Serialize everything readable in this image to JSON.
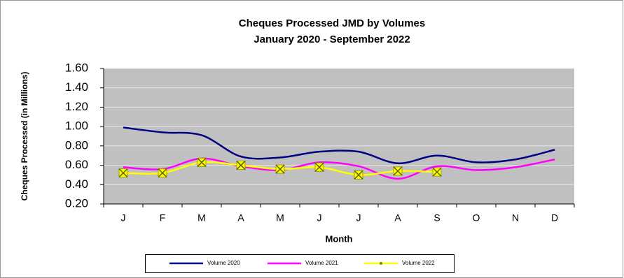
{
  "chart_data": {
    "type": "line",
    "title": "Cheques Processed JMD by Volumes",
    "subtitle": "January 2020 - September 2022",
    "y_label": "Cheques Processed (in Millions)",
    "x_label": "Month",
    "categories": [
      "J",
      "F",
      "M",
      "A",
      "M",
      "J",
      "J",
      "A",
      "S",
      "O",
      "N",
      "D"
    ],
    "series": [
      {
        "name": "Volume 2020",
        "color": "#000080",
        "values": [
          0.99,
          0.94,
          0.91,
          0.69,
          0.68,
          0.74,
          0.74,
          0.62,
          0.7,
          0.63,
          0.66,
          0.76
        ]
      },
      {
        "name": "Volume 2021",
        "color": "#ff00ff",
        "values": [
          0.58,
          0.56,
          0.67,
          0.59,
          0.55,
          0.63,
          0.59,
          0.46,
          0.59,
          0.55,
          0.58,
          0.66
        ]
      },
      {
        "name": "Volume 2022",
        "color": "#ffff00",
        "marker": "x",
        "values": [
          0.52,
          0.52,
          0.63,
          0.6,
          0.56,
          0.58,
          0.5,
          0.54,
          0.53,
          null,
          null,
          null
        ]
      }
    ],
    "ylim": [
      0.2,
      1.6
    ],
    "yticks": [
      {
        "value": 0.2,
        "label": "0.20"
      },
      {
        "value": 0.4,
        "label": "0.40"
      },
      {
        "value": 0.6,
        "label": "0.60"
      },
      {
        "value": 0.8,
        "label": "0.80"
      },
      {
        "value": 1.0,
        "label": "1.00"
      },
      {
        "value": 1.2,
        "label": "1.20"
      },
      {
        "value": 1.4,
        "label": "1.40"
      },
      {
        "value": 1.6,
        "label": "1.60"
      }
    ],
    "grid": true,
    "smooth": true,
    "legend": "bottom"
  }
}
